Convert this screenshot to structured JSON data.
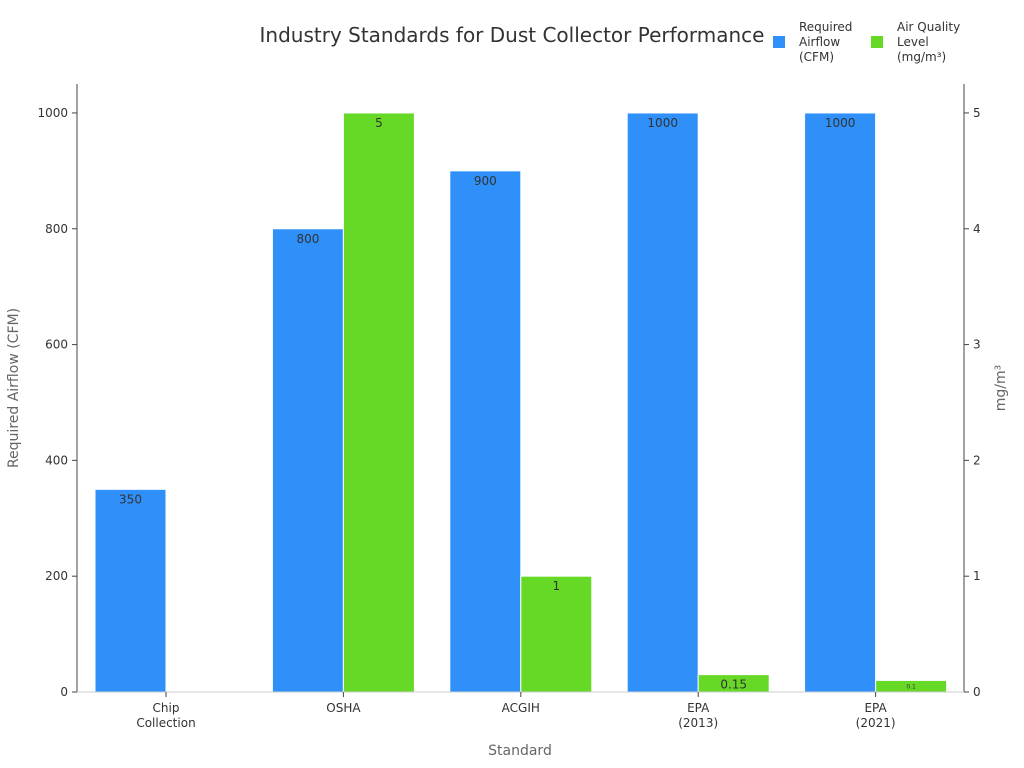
{
  "chart_data": {
    "type": "bar",
    "title": "Industry Standards for Dust Collector Performance",
    "xlabel": "Standard",
    "ylabel": "Required Airflow (CFM)",
    "y2label": "mg/m³",
    "categories": [
      [
        "Chip",
        "Collection"
      ],
      [
        "OSHA"
      ],
      [
        "ACGIH"
      ],
      [
        "EPA",
        "(2013)"
      ],
      [
        "EPA",
        "(2021)"
      ]
    ],
    "ylim": [
      0,
      1050
    ],
    "y2lim": [
      0,
      5.25
    ],
    "yticks": [
      0,
      200,
      400,
      600,
      800,
      1000
    ],
    "y2ticks": [
      0,
      1,
      2,
      3,
      4,
      5
    ],
    "legend_position": "top-right",
    "series": [
      {
        "name": [
          "Required",
          "Airflow",
          "(CFM)"
        ],
        "axis": "left",
        "color": "#2E90F8",
        "values": [
          350,
          800,
          900,
          1000,
          1000
        ],
        "labels": [
          "350",
          "800",
          "900",
          "1000",
          "1000"
        ]
      },
      {
        "name": [
          "Air Quality",
          "Level",
          "(mg/m³)"
        ],
        "axis": "right",
        "color": "#66D926",
        "values": [
          null,
          5,
          1,
          0.15,
          0.1
        ],
        "labels": [
          "",
          "5",
          "1",
          "0.15",
          "0.1"
        ]
      }
    ]
  }
}
